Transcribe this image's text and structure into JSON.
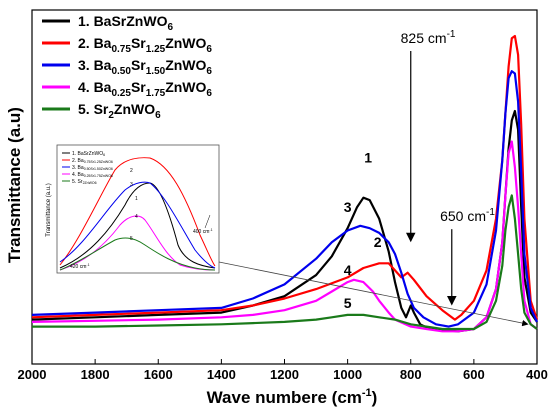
{
  "chart_data": {
    "type": "line",
    "xlabel": "Wave numbere (cm",
    "xlabel_sup": "-1",
    "xlabel_end": ")",
    "ylabel": "Transmittance (a.u)",
    "xlim": [
      2000,
      400
    ],
    "x_reversed": true,
    "xticks": [
      "2000",
      "1800",
      "1600",
      "1400",
      "1200",
      "1000",
      "800",
      "600",
      "400"
    ],
    "legend_position": "top-left",
    "series": [
      {
        "id": "s1",
        "label_parts": [
          [
            "1. BaSrZnWO",
            ""
          ],
          [
            "6",
            "sub"
          ]
        ],
        "color": "#000000",
        "points": [
          [
            2000,
            7
          ],
          [
            1800,
            8
          ],
          [
            1600,
            9
          ],
          [
            1400,
            10
          ],
          [
            1300,
            13
          ],
          [
            1200,
            17
          ],
          [
            1100,
            26
          ],
          [
            1050,
            34
          ],
          [
            1000,
            46
          ],
          [
            970,
            55
          ],
          [
            950,
            59
          ],
          [
            930,
            58
          ],
          [
            900,
            50
          ],
          [
            870,
            36
          ],
          [
            850,
            23
          ],
          [
            830,
            12
          ],
          [
            815,
            8
          ],
          [
            800,
            13
          ],
          [
            790,
            10
          ],
          [
            770,
            5
          ],
          [
            740,
            3
          ],
          [
            700,
            2.5
          ],
          [
            650,
            2
          ],
          [
            600,
            3
          ],
          [
            560,
            8
          ],
          [
            530,
            20
          ],
          [
            510,
            40
          ],
          [
            500,
            60
          ],
          [
            490,
            80
          ],
          [
            480,
            92
          ],
          [
            470,
            96
          ],
          [
            460,
            88
          ],
          [
            450,
            55
          ],
          [
            440,
            25
          ],
          [
            420,
            10
          ],
          [
            400,
            6
          ]
        ]
      },
      {
        "id": "s2",
        "label_parts": [
          [
            "2. Ba",
            ""
          ],
          [
            "0.75",
            "sub"
          ],
          [
            "Sr",
            ""
          ],
          [
            "1.25",
            "sub"
          ],
          [
            "ZnWO",
            ""
          ],
          [
            "6",
            "sub"
          ]
        ],
        "color": "#ff0000",
        "points": [
          [
            2000,
            8
          ],
          [
            1800,
            9
          ],
          [
            1600,
            10
          ],
          [
            1400,
            11
          ],
          [
            1300,
            13
          ],
          [
            1200,
            16
          ],
          [
            1100,
            20
          ],
          [
            1000,
            25
          ],
          [
            950,
            29
          ],
          [
            900,
            31
          ],
          [
            870,
            31
          ],
          [
            850,
            28
          ],
          [
            830,
            25
          ],
          [
            810,
            27
          ],
          [
            790,
            24
          ],
          [
            750,
            17
          ],
          [
            700,
            11
          ],
          [
            660,
            7
          ],
          [
            640,
            9
          ],
          [
            600,
            15
          ],
          [
            560,
            28
          ],
          [
            530,
            50
          ],
          [
            510,
            75
          ],
          [
            500,
            95
          ],
          [
            490,
            115
          ],
          [
            480,
            127
          ],
          [
            470,
            128
          ],
          [
            460,
            120
          ],
          [
            450,
            90
          ],
          [
            440,
            50
          ],
          [
            420,
            15
          ],
          [
            400,
            7
          ]
        ]
      },
      {
        "id": "s3",
        "label_parts": [
          [
            "3. Ba",
            ""
          ],
          [
            "0.50",
            "sub"
          ],
          [
            "Sr",
            ""
          ],
          [
            "1.50",
            "sub"
          ],
          [
            "ZnWO",
            ""
          ],
          [
            "6",
            "sub"
          ]
        ],
        "color": "#0000ee",
        "points": [
          [
            2000,
            9
          ],
          [
            1800,
            10
          ],
          [
            1600,
            11
          ],
          [
            1400,
            12
          ],
          [
            1300,
            16
          ],
          [
            1200,
            22
          ],
          [
            1100,
            33
          ],
          [
            1050,
            40
          ],
          [
            1000,
            45
          ],
          [
            960,
            47
          ],
          [
            930,
            46
          ],
          [
            900,
            44
          ],
          [
            870,
            40
          ],
          [
            850,
            35
          ],
          [
            830,
            27
          ],
          [
            810,
            18
          ],
          [
            790,
            12
          ],
          [
            760,
            8
          ],
          [
            720,
            5
          ],
          [
            680,
            4
          ],
          [
            650,
            5
          ],
          [
            600,
            10
          ],
          [
            560,
            22
          ],
          [
            530,
            45
          ],
          [
            510,
            75
          ],
          [
            500,
            95
          ],
          [
            490,
            110
          ],
          [
            480,
            113
          ],
          [
            470,
            112
          ],
          [
            460,
            100
          ],
          [
            450,
            70
          ],
          [
            440,
            35
          ],
          [
            420,
            12
          ],
          [
            400,
            6
          ]
        ]
      },
      {
        "id": "s4",
        "label_parts": [
          [
            "4. Ba",
            ""
          ],
          [
            "0.25",
            "sub"
          ],
          [
            "Sr",
            ""
          ],
          [
            "1.75",
            "sub"
          ],
          [
            "ZnWO",
            ""
          ],
          [
            "6",
            "sub"
          ]
        ],
        "color": "#ff00ff",
        "points": [
          [
            2000,
            6
          ],
          [
            1800,
            6.5
          ],
          [
            1600,
            7
          ],
          [
            1400,
            8
          ],
          [
            1300,
            9
          ],
          [
            1200,
            11
          ],
          [
            1100,
            15
          ],
          [
            1050,
            19
          ],
          [
            1000,
            23
          ],
          [
            980,
            24
          ],
          [
            950,
            23
          ],
          [
            920,
            19
          ],
          [
            900,
            15
          ],
          [
            870,
            10
          ],
          [
            850,
            7
          ],
          [
            800,
            4
          ],
          [
            750,
            3
          ],
          [
            700,
            2
          ],
          [
            650,
            2
          ],
          [
            600,
            3
          ],
          [
            560,
            8
          ],
          [
            530,
            20
          ],
          [
            510,
            40
          ],
          [
            500,
            60
          ],
          [
            490,
            78
          ],
          [
            480,
            83
          ],
          [
            470,
            72
          ],
          [
            460,
            55
          ],
          [
            450,
            35
          ],
          [
            440,
            15
          ],
          [
            420,
            5
          ],
          [
            400,
            3
          ]
        ]
      },
      {
        "id": "s5",
        "label_parts": [
          [
            "5. Sr",
            ""
          ],
          [
            "2",
            "sub"
          ],
          [
            "ZnWO",
            ""
          ],
          [
            "6",
            "sub"
          ]
        ],
        "color": "#1a7a1a",
        "points": [
          [
            2000,
            4
          ],
          [
            1800,
            4
          ],
          [
            1600,
            4.5
          ],
          [
            1400,
            5
          ],
          [
            1300,
            5.5
          ],
          [
            1200,
            6
          ],
          [
            1100,
            7
          ],
          [
            1050,
            8
          ],
          [
            1000,
            9
          ],
          [
            950,
            9
          ],
          [
            900,
            8
          ],
          [
            850,
            7
          ],
          [
            800,
            5
          ],
          [
            750,
            4
          ],
          [
            700,
            3
          ],
          [
            650,
            3
          ],
          [
            600,
            3
          ],
          [
            560,
            6
          ],
          [
            530,
            15
          ],
          [
            510,
            30
          ],
          [
            500,
            45
          ],
          [
            490,
            55
          ],
          [
            480,
            60
          ],
          [
            470,
            50
          ],
          [
            460,
            35
          ],
          [
            450,
            20
          ],
          [
            440,
            10
          ],
          [
            420,
            5
          ],
          [
            400,
            3
          ]
        ]
      }
    ],
    "annotations": [
      {
        "text": "825 cm",
        "sup": "-1",
        "at": [
          775,
          125
        ],
        "arrow_to": [
          800,
          41
        ]
      },
      {
        "text": "650 cm",
        "sup": "-1",
        "at": [
          650,
          49
        ],
        "arrow_to": [
          670,
          14
        ]
      }
    ],
    "peak_labels": [
      {
        "text": "1",
        "at": [
          935,
          74
        ]
      },
      {
        "text": "3",
        "at": [
          1000,
          53
        ]
      },
      {
        "text": "2",
        "at": [
          905,
          38
        ]
      },
      {
        "text": "4",
        "at": [
          1000,
          26
        ]
      },
      {
        "text": "5",
        "at": [
          1000,
          12
        ]
      }
    ],
    "inset": {
      "ylabel": "Transmittance (a.u.)",
      "legend": [
        "1. BaSrZnWO",
        "2. Ba",
        "3. Ba",
        "4. Ba",
        "5. Sr"
      ],
      "legend_subs": [
        "6",
        "0.75Sr1.25ZnWO6",
        "0.50Sr1.50ZnWO6",
        "0.25Sr1.75ZnWO6",
        "2ZnWO6"
      ],
      "annotations": [
        "400 cm",
        "420 cm"
      ],
      "annotation_sup": "-1",
      "curve_labels": [
        "1",
        "2",
        "3",
        "4",
        "5"
      ]
    }
  }
}
